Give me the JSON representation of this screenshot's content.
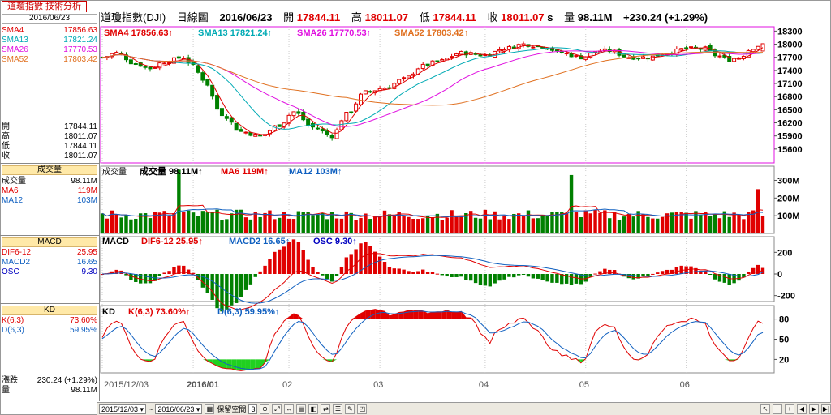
{
  "window": {
    "tab_title": "道瓊指數 技術分析"
  },
  "header": {
    "name": "道瓊指數(DJI)",
    "period": "日線圖",
    "date": "2016/06/23",
    "open_label": "開",
    "open": "17844.11",
    "high_label": "高",
    "high": "18011.07",
    "low_label": "低",
    "low": "17844.11",
    "close_label": "收",
    "close": "18011.07",
    "close_suffix": "s",
    "vol_label": "量",
    "vol": "98.11M",
    "change": "+230.24 (+1.29%)"
  },
  "sidebar": {
    "date": "2016/06/23",
    "sma": [
      {
        "label": "SMA4",
        "value": "17856.63",
        "color": "#e00000"
      },
      {
        "label": "SMA13",
        "value": "17821.24",
        "color": "#00aab4"
      },
      {
        "label": "SMA26",
        "value": "17770.53",
        "color": "#e010e0"
      },
      {
        "label": "SMA52",
        "value": "17803.42",
        "color": "#e07020"
      }
    ],
    "ohlc": [
      {
        "label": "開",
        "value": "17844.11"
      },
      {
        "label": "高",
        "value": "18011.07"
      },
      {
        "label": "低",
        "value": "17844.11"
      },
      {
        "label": "收",
        "value": "18011.07"
      }
    ],
    "volume_title": "成交量",
    "volume": [
      {
        "label": "成交量",
        "value": "98.11M"
      },
      {
        "label": "MA6",
        "value": "119M"
      },
      {
        "label": "MA12",
        "value": "103M"
      }
    ],
    "macd_title": "MACD",
    "macd": [
      {
        "label": "DIF6-12",
        "value": "25.95"
      },
      {
        "label": "MACD2",
        "value": "16.65"
      },
      {
        "label": "OSC",
        "value": "9.30"
      }
    ],
    "kd_title": "KD",
    "kd": [
      {
        "label": "K(6,3)",
        "value": "73.60%"
      },
      {
        "label": "D(6,3)",
        "value": "59.95%"
      }
    ],
    "change_label": "漲跌",
    "change_value": "230.24 (+1.29%)",
    "vol_label": "量",
    "vol_value": "98.11M"
  },
  "legends": {
    "price": [
      {
        "label": "SMA4",
        "value": "17856.63"
      },
      {
        "label": "SMA13",
        "value": "17821.24"
      },
      {
        "label": "SMA26",
        "value": "17770.53"
      },
      {
        "label": "SMA52",
        "value": "17803.42"
      }
    ],
    "volume": {
      "title": "成交量",
      "items": [
        {
          "label": "成交量",
          "value": "98.11M"
        },
        {
          "label": "MA6",
          "value": "119M"
        },
        {
          "label": "MA12",
          "value": "103M"
        }
      ]
    },
    "macd": {
      "title": "MACD",
      "items": [
        {
          "label": "DIF6-12",
          "value": "25.95"
        },
        {
          "label": "MACD2",
          "value": "16.65"
        },
        {
          "label": "OSC",
          "value": "9.30"
        }
      ]
    },
    "kd": {
      "title": "KD",
      "items": [
        {
          "label": "K(6,3)",
          "value": "73.60%"
        },
        {
          "label": "D(6,3)",
          "value": "59.95%"
        }
      ]
    },
    "arrow": "↑"
  },
  "bottombar": {
    "from": "2015/12/03",
    "to": "2016/06/23",
    "tilde": "~",
    "keep_label": "保留空間",
    "keep_value": "3"
  },
  "colors": {
    "up": "#e00000",
    "down": "#008000",
    "sma4": "#e00000",
    "sma13": "#00aab4",
    "sma26": "#e010e0",
    "sma52": "#e07020",
    "vol_ma6": "#e00000",
    "vol_ma12": "#1060c0",
    "dif": "#e00000",
    "macd": "#1060c0",
    "k": "#e00000",
    "d": "#1060c0"
  },
  "chart_data": [
    {
      "type": "candlestick",
      "panel": "price",
      "ylim": [
        15300,
        18400
      ],
      "y_ticks": [
        15600,
        15900,
        16200,
        16500,
        16800,
        17100,
        17400,
        17700,
        18000,
        18300
      ],
      "y_tick_labels": [
        "15600",
        "15900",
        "16200",
        "16500",
        "16800",
        "17100",
        "17400",
        "17700",
        "18000",
        "18300"
      ],
      "x_tick_labels": [
        {
          "label": "2015/12/03",
          "index": 0
        },
        {
          "label": "2016/01",
          "index": 19
        },
        {
          "label": "02",
          "index": 39
        },
        {
          "label": "03",
          "index": 58
        },
        {
          "label": "04",
          "index": 80
        },
        {
          "label": "05",
          "index": 101
        },
        {
          "label": "06",
          "index": 122
        }
      ],
      "knots": [
        [
          0,
          17700
        ],
        [
          3,
          17800
        ],
        [
          7,
          17550
        ],
        [
          10,
          17450
        ],
        [
          13,
          17600
        ],
        [
          17,
          17700
        ],
        [
          19,
          17500
        ],
        [
          21,
          17200
        ],
        [
          25,
          16400
        ],
        [
          29,
          16000
        ],
        [
          33,
          15900
        ],
        [
          37,
          16150
        ],
        [
          40,
          16450
        ],
        [
          44,
          16100
        ],
        [
          48,
          15900
        ],
        [
          51,
          16400
        ],
        [
          55,
          16900
        ],
        [
          59,
          17000
        ],
        [
          63,
          17200
        ],
        [
          67,
          17500
        ],
        [
          70,
          17600
        ],
        [
          75,
          17800
        ],
        [
          80,
          17750
        ],
        [
          84,
          17900
        ],
        [
          88,
          18000
        ],
        [
          92,
          17950
        ],
        [
          96,
          17800
        ],
        [
          100,
          17700
        ],
        [
          104,
          17850
        ],
        [
          106,
          17850
        ],
        [
          110,
          17700
        ],
        [
          114,
          17700
        ],
        [
          118,
          17800
        ],
        [
          122,
          17900
        ],
        [
          126,
          17900
        ],
        [
          128,
          17750
        ],
        [
          131,
          17650
        ],
        [
          133,
          17700
        ],
        [
          136,
          17920
        ],
        [
          138,
          18011
        ]
      ],
      "last_ohlc": {
        "open": 17844.11,
        "high": 18011.07,
        "low": 17844.11,
        "close": 18011.07
      },
      "count": 139
    },
    {
      "type": "bar",
      "panel": "volume",
      "ylim": [
        0,
        380
      ],
      "y_ticks": [
        100,
        200,
        300
      ],
      "y_tick_labels": [
        "100M",
        "200M",
        "300M"
      ],
      "baseline": 100,
      "spikes": [
        {
          "index": 16,
          "value": 360
        },
        {
          "index": 98,
          "value": 330
        },
        {
          "index": 137,
          "value": 250
        }
      ],
      "last_value": 98.11
    },
    {
      "type": "bar",
      "panel": "macd",
      "ylim": [
        -300,
        300
      ],
      "y_ticks": [
        -200,
        0,
        200
      ],
      "y_tick_labels": [
        "-200",
        "0",
        "200"
      ],
      "last": {
        "dif": 25.95,
        "macd": 16.65,
        "osc": 9.3
      }
    },
    {
      "type": "line",
      "panel": "kd",
      "ylim": [
        0,
        100
      ],
      "y_ticks": [
        20,
        50,
        80
      ],
      "y_tick_labels": [
        "20",
        "50",
        "80"
      ],
      "last": {
        "k": 73.6,
        "d": 59.95
      }
    }
  ]
}
